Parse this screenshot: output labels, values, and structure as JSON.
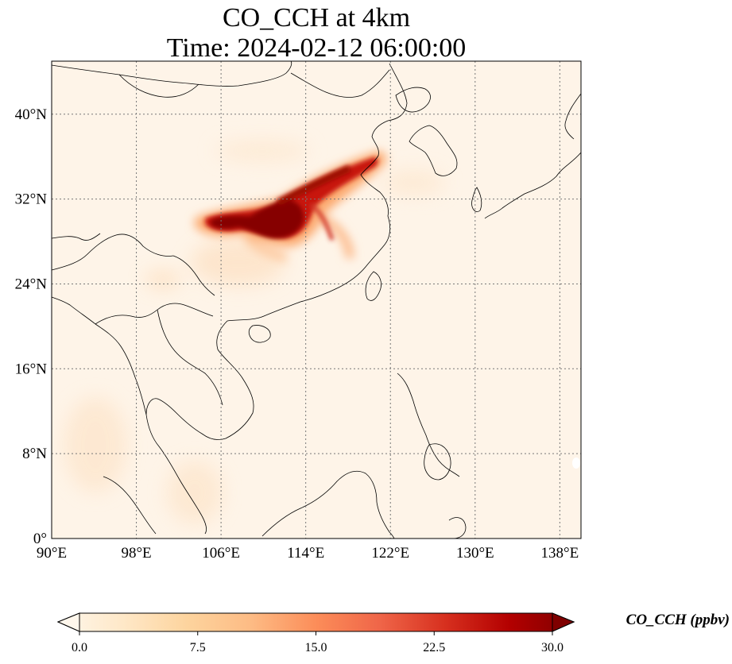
{
  "title": {
    "line1": "CO_CCH at 4km",
    "line2": "Time: 2024-02-12 06:00:00"
  },
  "map": {
    "lon_range": [
      90,
      140
    ],
    "lat_range": [
      0,
      45
    ],
    "lon_ticks": [
      {
        "value": 90,
        "label": "90°E"
      },
      {
        "value": 98,
        "label": "98°E"
      },
      {
        "value": 106,
        "label": "106°E"
      },
      {
        "value": 114,
        "label": "114°E"
      },
      {
        "value": 122,
        "label": "122°E"
      },
      {
        "value": 130,
        "label": "130°E"
      },
      {
        "value": 138,
        "label": "138°E"
      }
    ],
    "lat_ticks": [
      {
        "value": 0,
        "label": "0°"
      },
      {
        "value": 8,
        "label": "8°N"
      },
      {
        "value": 16,
        "label": "16°N"
      },
      {
        "value": 24,
        "label": "24°N"
      },
      {
        "value": 32,
        "label": "32°N"
      },
      {
        "value": 40,
        "label": "40°N"
      }
    ],
    "gridlines": true
  },
  "colorbar": {
    "label": "CO_CCH (ppbv)",
    "range": [
      0,
      30
    ],
    "extend": "both",
    "colormap": [
      "#fff7ec",
      "#fee8c8",
      "#fdd49e",
      "#fdbb84",
      "#fc8d59",
      "#ef6548",
      "#d7301f",
      "#b30000",
      "#7f0000"
    ],
    "ticks": [
      {
        "value": 0,
        "label": "0.0"
      },
      {
        "value": 7.5,
        "label": "7.5"
      },
      {
        "value": 15,
        "label": "15.0"
      },
      {
        "value": 22.5,
        "label": "22.5"
      },
      {
        "value": 30,
        "label": "30.0"
      }
    ]
  }
}
